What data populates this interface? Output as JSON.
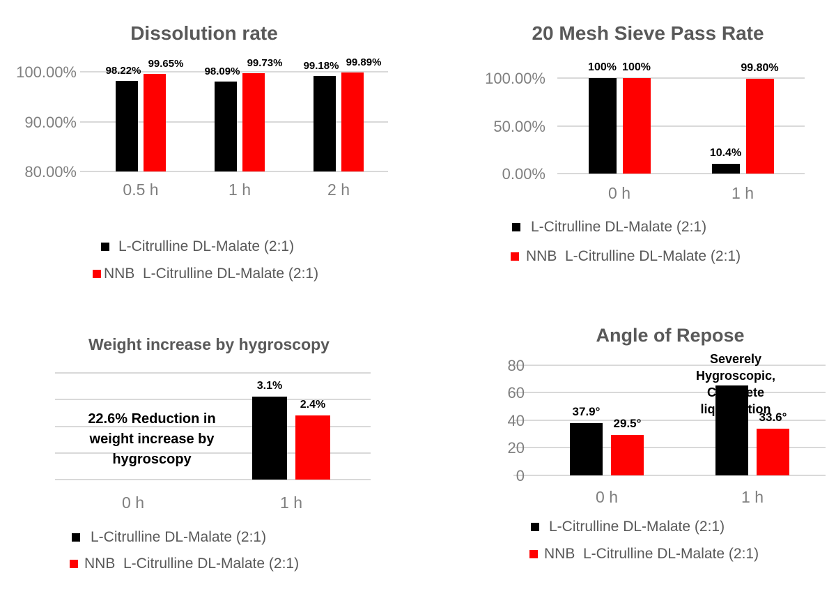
{
  "colors": {
    "series1": "#000000",
    "series2": "#ff0000",
    "title_text": "#595959",
    "axis_text": "#7f7f7f",
    "legend_text": "#595959",
    "gridline": "#d9d9d9",
    "data_label": "#000000",
    "background": "#ffffff"
  },
  "chart_data": [
    {
      "id": "dissolution-rate",
      "type": "bar",
      "title": "Dissolution rate",
      "categories": [
        "0.5 h",
        "1 h",
        "2 h"
      ],
      "series": [
        {
          "name": "L-Citrulline DL-Malate (2:1)",
          "color": "#000000",
          "values": [
            98.22,
            98.09,
            99.18
          ],
          "data_labels": [
            "98.22%",
            "98.09%",
            "99.18%"
          ]
        },
        {
          "name": "NNB  L-Citrulline DL-Malate (2:1)",
          "color": "#ff0000",
          "values": [
            99.65,
            99.73,
            99.89
          ],
          "data_labels": [
            "99.65%",
            "99.73%",
            "99.89%"
          ]
        }
      ],
      "ylim": [
        80,
        100
      ],
      "yticks": [
        {
          "value": 80,
          "label": "80.00%"
        },
        {
          "value": 90,
          "label": "90.00%"
        },
        {
          "value": 100,
          "label": "100.00%"
        }
      ],
      "gridlines": [
        80,
        90,
        100
      ],
      "grid": true,
      "legend_position": "bottom"
    },
    {
      "id": "mesh-sieve-pass-rate",
      "type": "bar",
      "title": "20 Mesh Sieve Pass Rate",
      "categories": [
        "0 h",
        "1 h"
      ],
      "series": [
        {
          "name": "L-Citrulline DL-Malate (2:1)",
          "color": "#000000",
          "values": [
            100,
            10.4
          ],
          "data_labels": [
            "100%",
            "10.4%"
          ]
        },
        {
          "name": "NNB  L-Citrulline DL-Malate (2:1)",
          "color": "#ff0000",
          "values": [
            100,
            99.8
          ],
          "data_labels": [
            "100%",
            "99.80%"
          ]
        }
      ],
      "ylim": [
        0,
        100
      ],
      "yticks": [
        {
          "value": 0,
          "label": "0.00%"
        },
        {
          "value": 50,
          "label": "50.00%"
        },
        {
          "value": 100,
          "label": "100.00%"
        }
      ],
      "gridlines": [
        0,
        50,
        100
      ],
      "grid": true,
      "legend_position": "bottom"
    },
    {
      "id": "weight-increase-by-hygroscopy",
      "type": "bar",
      "title": "Weight increase by hygroscopy",
      "categories": [
        "0 h",
        "1 h"
      ],
      "series": [
        {
          "name": "L-Citrulline DL-Malate (2:1)",
          "color": "#000000",
          "values": [
            null,
            3.1
          ],
          "data_labels": [
            null,
            "3.1%"
          ]
        },
        {
          "name": "NNB  L-Citrulline DL-Malate (2:1)",
          "color": "#ff0000",
          "values": [
            null,
            2.4
          ],
          "data_labels": [
            null,
            "2.4%"
          ]
        }
      ],
      "ylim": [
        0,
        4
      ],
      "yticks": [],
      "gridlines": [
        0,
        1,
        2,
        3,
        4
      ],
      "grid": true,
      "annotation": "22.6% Reduction in\nweight increase by\nhygroscopy",
      "legend_position": "bottom"
    },
    {
      "id": "angle-of-repose",
      "type": "bar",
      "title": "Angle of Repose",
      "categories": [
        "0 h",
        "1 h"
      ],
      "series": [
        {
          "name": "L-Citrulline DL-Malate (2:1)",
          "color": "#000000",
          "values": [
            37.9,
            65
          ],
          "data_labels": [
            "37.9°",
            null
          ]
        },
        {
          "name": "NNB  L-Citrulline DL-Malate (2:1)",
          "color": "#ff0000",
          "values": [
            29.5,
            33.6
          ],
          "data_labels": [
            "29.5°",
            "33.6°"
          ]
        }
      ],
      "ylim": [
        0,
        80
      ],
      "yticks": [
        {
          "value": 0,
          "label": "0"
        },
        {
          "value": 20,
          "label": "20"
        },
        {
          "value": 40,
          "label": "40"
        },
        {
          "value": 60,
          "label": "60"
        },
        {
          "value": 80,
          "label": "80"
        }
      ],
      "gridlines": [
        0,
        20,
        40,
        60,
        80
      ],
      "grid": true,
      "annotation": "Severely Hygroscopic,\nComplete liquefaction",
      "legend_position": "bottom"
    }
  ]
}
